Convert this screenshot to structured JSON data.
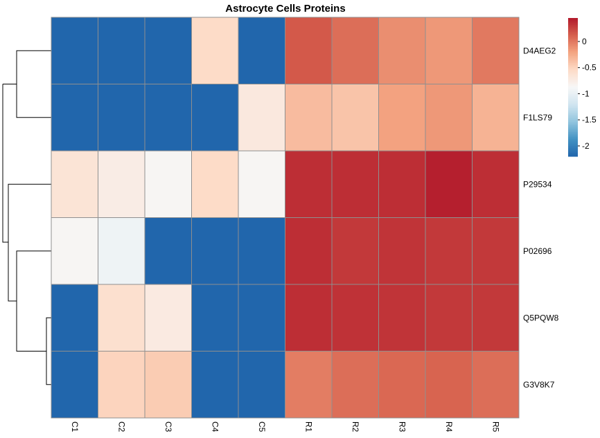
{
  "chart_data": {
    "type": "heatmap",
    "title": "Astrocyte Cells Proteins",
    "rows": [
      "D4AEG2",
      "F1LS79",
      "P29534",
      "P02696",
      "Q5PQW8",
      "G3V8K7"
    ],
    "columns": [
      "C1",
      "C2",
      "C3",
      "C4",
      "C5",
      "R1",
      "R2",
      "R3",
      "R4",
      "R5"
    ],
    "values": [
      [
        -2.2,
        -2.2,
        -2.2,
        -0.55,
        -2.2,
        0.15,
        0.05,
        -0.1,
        -0.15,
        0.0
      ],
      [
        -2.2,
        -2.2,
        -2.2,
        -2.2,
        -0.7,
        -0.35,
        -0.4,
        -0.2,
        -0.15,
        -0.3
      ],
      [
        -0.65,
        -0.75,
        -0.85,
        -0.55,
        -0.85,
        0.35,
        0.35,
        0.35,
        0.42,
        0.35
      ],
      [
        -0.85,
        -0.95,
        -2.2,
        -2.2,
        -2.2,
        0.35,
        0.3,
        0.32,
        0.3,
        0.3
      ],
      [
        -2.2,
        -0.6,
        -0.72,
        -2.2,
        -2.2,
        0.35,
        0.33,
        0.32,
        0.3,
        0.3
      ],
      [
        -2.2,
        -0.5,
        -0.45,
        -2.2,
        -2.2,
        -0.02,
        0.05,
        0.08,
        0.1,
        0.05
      ]
    ],
    "colorbar": {
      "ticks": [
        "0",
        "-0.5",
        "-1",
        "-1.5",
        "-2"
      ],
      "tick_values": [
        0,
        -0.5,
        -1,
        -1.5,
        -2
      ],
      "range": [
        -2.2,
        0.45
      ],
      "colors": [
        "#2166ac",
        "#4393c3",
        "#92c5de",
        "#d1e5f0",
        "#f7f7f7",
        "#fddbc7",
        "#f4a582",
        "#d6604d",
        "#b2182b"
      ]
    },
    "row_dendrogram": true,
    "grid": true
  }
}
